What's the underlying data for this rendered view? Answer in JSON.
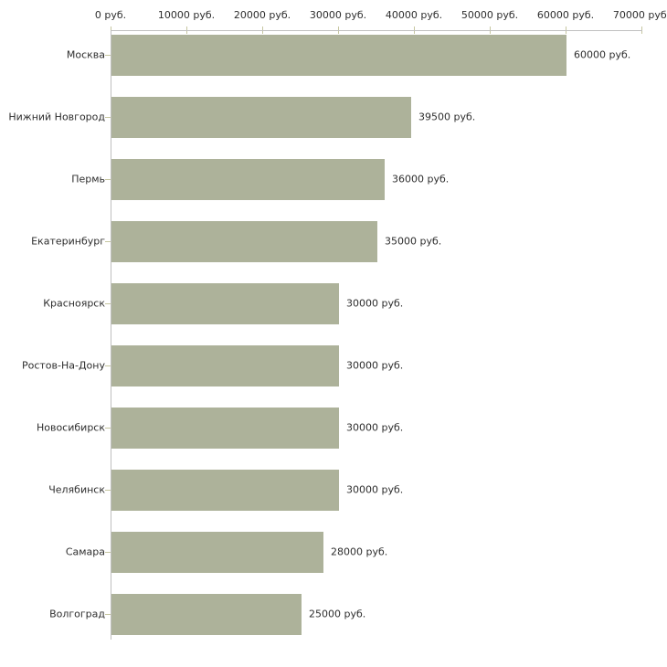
{
  "chart_data": {
    "type": "bar",
    "orientation": "horizontal",
    "categories": [
      "Москва",
      "Нижний Новгород",
      "Пермь",
      "Екатеринбург",
      "Красноярск",
      "Ростов-На-Дону",
      "Новосибирск",
      "Челябинск",
      "Самара",
      "Волгоград"
    ],
    "values": [
      60000,
      39500,
      36000,
      35000,
      30000,
      30000,
      30000,
      30000,
      28000,
      25000
    ],
    "value_labels": [
      "60000 руб.",
      "39500 руб.",
      "36000 руб.",
      "35000 руб.",
      "30000 руб.",
      "30000 руб.",
      "30000 руб.",
      "30000 руб.",
      "28000 руб.",
      "25000 руб."
    ],
    "x_ticks": [
      0,
      10000,
      20000,
      30000,
      40000,
      50000,
      60000,
      70000
    ],
    "x_tick_labels": [
      "0 руб.",
      "10000 руб.",
      "20000 руб.",
      "30000 руб.",
      "40000 руб.",
      "50000 руб.",
      "60000 руб.",
      "70000 руб."
    ],
    "xlim": [
      0,
      70000
    ],
    "title": "",
    "xlabel": "",
    "ylabel": "",
    "grid": false,
    "legend": null,
    "colors": {
      "bar": "#adb29a",
      "axis_line": "#c0c0c0",
      "tick_mark": "#c6c6a0",
      "text": "#2e2e2e",
      "background": "#ffffff"
    }
  }
}
